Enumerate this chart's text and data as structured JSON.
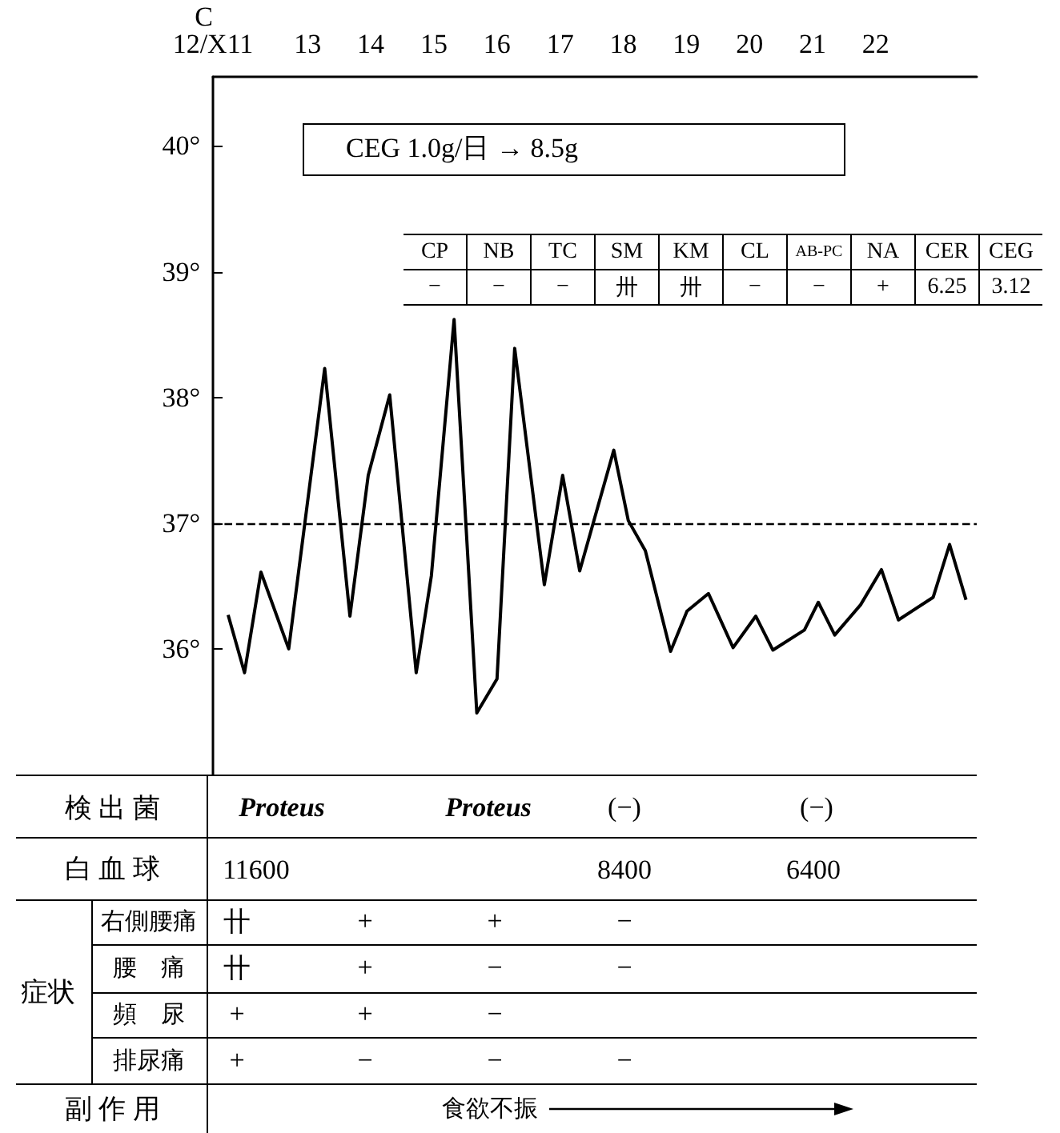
{
  "chart_data": {
    "type": "line",
    "ylabel": "C",
    "color": "#000000",
    "x": [
      11.74,
      12.0,
      12.26,
      12.7,
      13.27,
      13.67,
      13.96,
      14.3,
      14.72,
      14.96,
      15.32,
      15.68,
      16.0,
      16.28,
      16.75,
      17.04,
      17.31,
      17.85,
      18.08,
      18.35,
      18.75,
      19.01,
      19.35,
      19.74,
      20.1,
      20.37,
      20.87,
      21.09,
      21.35,
      21.76,
      22.09,
      22.36,
      22.91,
      23.17,
      23.43
    ],
    "values": [
      36.27,
      35.81,
      36.61,
      36.0,
      38.23,
      36.26,
      37.38,
      38.02,
      35.81,
      36.58,
      38.62,
      35.49,
      35.76,
      38.39,
      36.51,
      37.38,
      36.62,
      37.58,
      37.02,
      36.78,
      35.98,
      36.3,
      36.44,
      36.01,
      36.26,
      35.99,
      36.15,
      36.37,
      36.11,
      36.35,
      36.63,
      36.23,
      36.41,
      36.83,
      36.39
    ],
    "xlim": [
      11.5,
      23.6
    ],
    "xticks": [
      {
        "value": 11.5,
        "label": "12/X11"
      },
      13,
      14,
      15,
      16,
      17,
      18,
      19,
      20,
      21,
      22
    ],
    "ylim": [
      35.0,
      40.55
    ],
    "yticks": [
      {
        "value": 36,
        "label": "36°"
      },
      {
        "value": 37,
        "label": "37°"
      },
      {
        "value": 38,
        "label": "38°"
      },
      {
        "value": 39,
        "label": "39°"
      },
      {
        "value": 40,
        "label": "40°"
      }
    ],
    "grid": false,
    "marker": "none",
    "line_style": "solid",
    "ref_lines": [
      {
        "axis": "y",
        "value": 37,
        "line_style": "dashed",
        "color": "#000000"
      }
    ],
    "annotations": [
      "CEG 1.0g/日 → 8.5g",
      "CP",
      "NB",
      "TC",
      "SM",
      "KM",
      "CL",
      "AB-PC",
      "NA",
      "CER",
      "CEG",
      "−",
      "−",
      "−",
      "卅",
      "卅",
      "−",
      "−",
      "+",
      "6.25",
      "3.12",
      "検 出 菌",
      "Proteus",
      "Proteus",
      "(−)",
      "(−)",
      "白 血 球",
      "11600",
      "8400",
      "6400",
      "症状",
      "右側腰痛",
      "卄",
      "+",
      "+",
      "−",
      "腰　痛",
      "卄",
      "+",
      "−",
      "−",
      "頻　尿",
      "+",
      "+",
      "−",
      "排尿痛",
      "+",
      "−",
      "−",
      "−",
      "副 作 用",
      "食欲不振"
    ]
  }
}
